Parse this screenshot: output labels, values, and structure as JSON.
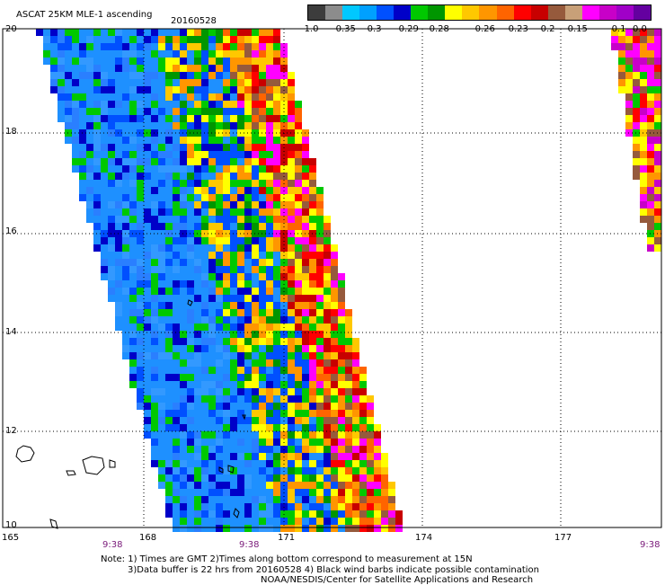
{
  "title": "ASCAT 25KM MLE-1 ascending",
  "date": "20160528",
  "legend": {
    "labels": [
      "-1.0",
      "-0.35",
      "-0.3",
      "-0.29",
      "-0.28",
      "-0.26",
      "-0.23",
      "-0.2",
      "-0.15",
      "-0.1",
      "0.0"
    ],
    "colors": [
      "#3c3c3c",
      "#8c8c8c",
      "#00c8ff",
      "#00a0ff",
      "#0050ff",
      "#0000c8",
      "#00c800",
      "#009600",
      "#ffff00",
      "#ffc800",
      "#ff9600",
      "#ff6400",
      "#ff0000",
      "#c80000",
      "#965a3c",
      "#c8a078",
      "#ff00ff",
      "#c800c8",
      "#a000c8",
      "#6400a0"
    ]
  },
  "axes": {
    "lat_labels": [
      "20",
      "18",
      "16",
      "14",
      "12",
      "10"
    ],
    "lon_labels": [
      "165",
      "168",
      "171",
      "174",
      "177"
    ],
    "time_labels": [
      "9:38",
      "9:38",
      "9:38"
    ]
  },
  "notes": [
    "Note: 1) Times are GMT 2)Times along bottom correspond to measurement at 15N",
    "3)Data buffer is 22 hrs from 20160528 4) Black wind barbs indicate possible contamination",
    "NOAA/NESDIS/Center for Satellite Applications and Research"
  ]
}
